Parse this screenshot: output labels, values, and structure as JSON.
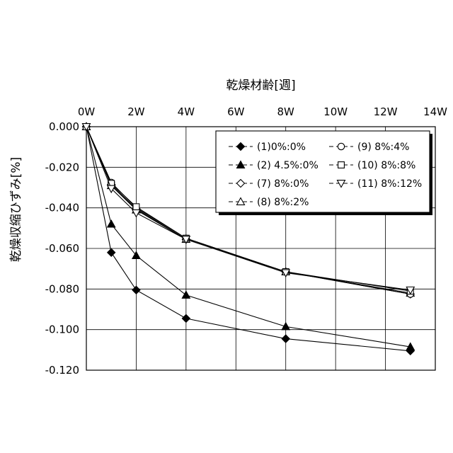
{
  "chart_data": {
    "type": "line",
    "title": "",
    "xlabel": "乾燥材齢[週]",
    "ylabel": "乾燥収縮ひずみ[%]",
    "xlim": [
      0,
      14
    ],
    "ylim": [
      -0.12,
      0.0
    ],
    "x_ticks": [
      0,
      2,
      4,
      6,
      8,
      10,
      12,
      14
    ],
    "x_tick_labels": [
      "0W",
      "2W",
      "4W",
      "6W",
      "8W",
      "10W",
      "12W",
      "14W"
    ],
    "y_ticks": [
      0.0,
      -0.02,
      -0.04,
      -0.06,
      -0.08,
      -0.1,
      -0.12
    ],
    "y_tick_labels": [
      "0.000",
      "-0.020",
      "-0.040",
      "-0.060",
      "-0.080",
      "-0.100",
      "-0.120"
    ],
    "x_axis_position": "top",
    "grid": true,
    "legend_position": "top-right",
    "series": [
      {
        "name": "(1)0%:0%",
        "marker": "diamond-filled",
        "x": [
          0,
          1,
          2,
          4,
          8,
          13
        ],
        "values": [
          0.0,
          -0.062,
          -0.0805,
          -0.0945,
          -0.1045,
          -0.1105
        ]
      },
      {
        "name": "(2) 4.5%:0%",
        "marker": "triangle-filled",
        "x": [
          0,
          1,
          2,
          4,
          8,
          13
        ],
        "values": [
          0.0,
          -0.048,
          -0.0635,
          -0.083,
          -0.0985,
          -0.1085
        ]
      },
      {
        "name": "(7) 8%:0%",
        "marker": "diamond-open",
        "x": [
          0,
          1,
          2,
          4,
          8,
          13
        ],
        "values": [
          0.0,
          -0.0285,
          -0.0405,
          -0.0555,
          -0.0715,
          -0.0825
        ]
      },
      {
        "name": "(8) 8%:2%",
        "marker": "triangle-open",
        "x": [
          0,
          1,
          2,
          4,
          8,
          13
        ],
        "values": [
          0.0,
          -0.029,
          -0.041,
          -0.0555,
          -0.0715,
          -0.082
        ]
      },
      {
        "name": "(9) 8%:4%",
        "marker": "circle-open",
        "x": [
          0,
          1,
          2,
          4,
          8,
          13
        ],
        "values": [
          0.0,
          -0.0275,
          -0.04,
          -0.055,
          -0.0715,
          -0.0825
        ]
      },
      {
        "name": "(10) 8%:8%",
        "marker": "square-open",
        "x": [
          0,
          1,
          2,
          4,
          8,
          13
        ],
        "values": [
          0.0,
          -0.028,
          -0.0395,
          -0.055,
          -0.0715,
          -0.081
        ]
      },
      {
        "name": "(11) 8%:12%",
        "marker": "triangle-down-open",
        "x": [
          0,
          1,
          2,
          4,
          8,
          13
        ],
        "values": [
          0.0,
          -0.0305,
          -0.0425,
          -0.0555,
          -0.072,
          -0.0805
        ]
      }
    ]
  }
}
